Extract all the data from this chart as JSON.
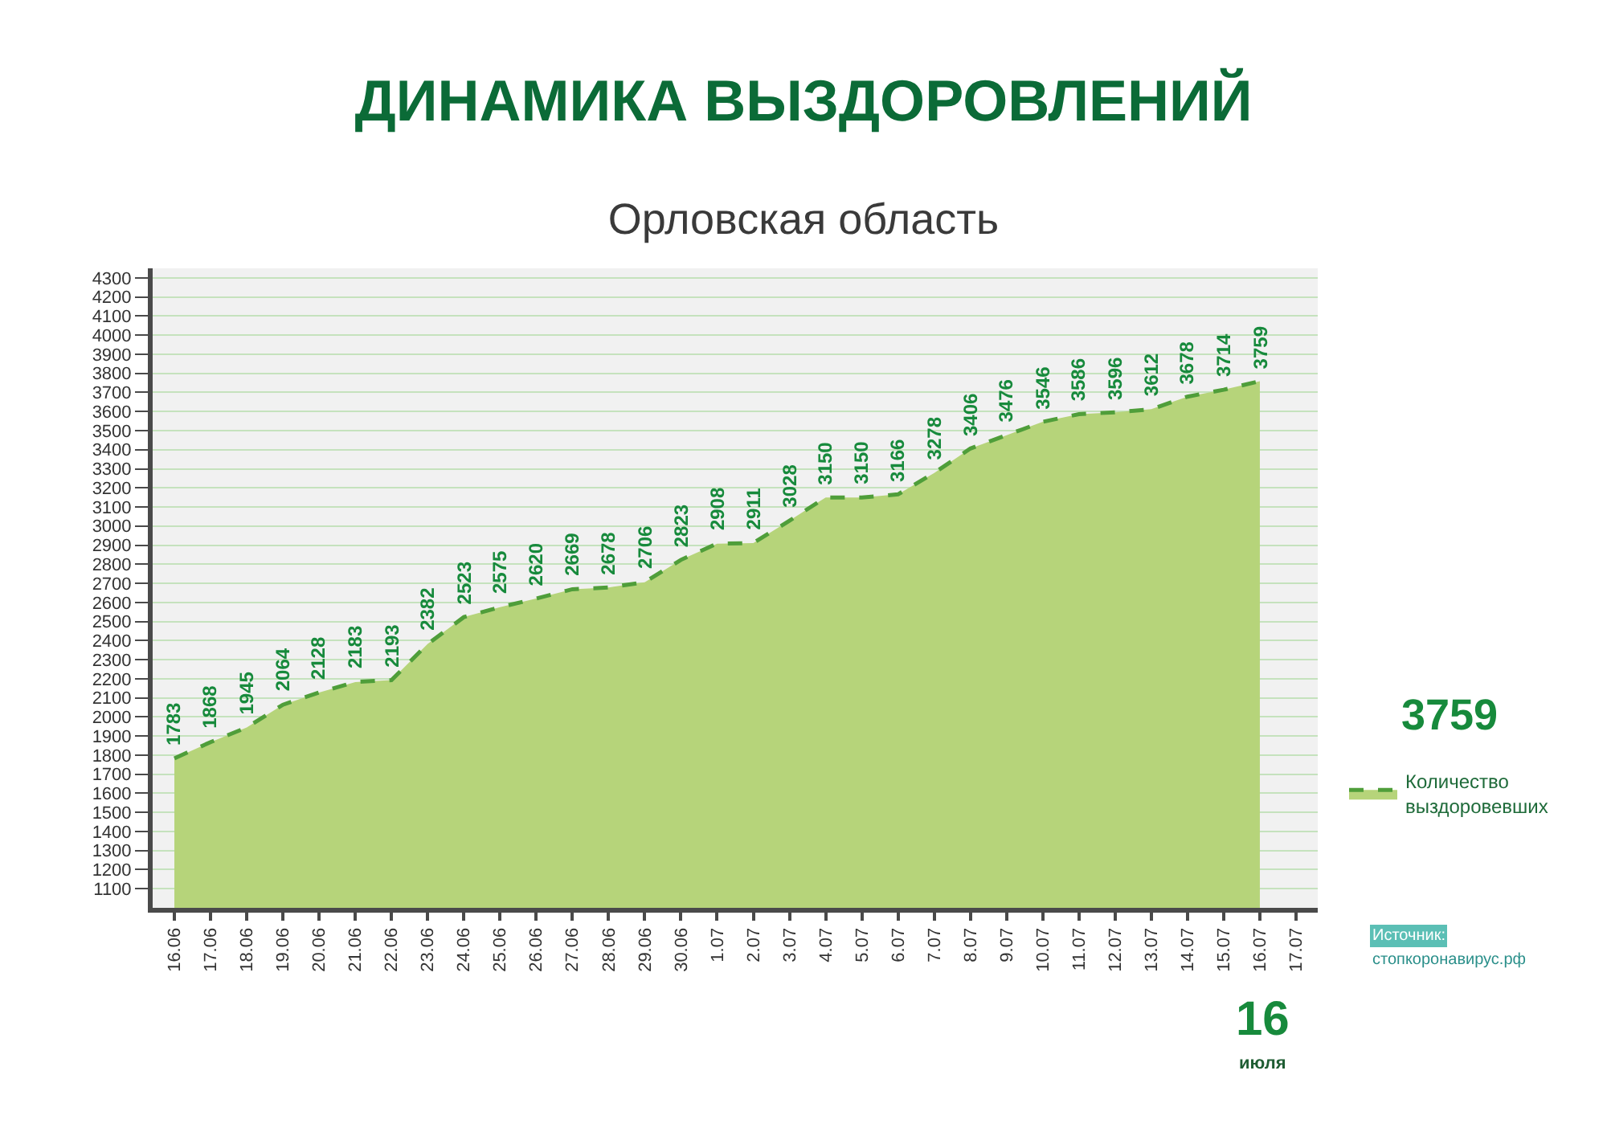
{
  "chart_data": {
    "type": "area",
    "title": "ДИНАМИКА ВЫЗДОРОВЛЕНИЙ",
    "subtitle": "Орловская область",
    "categories": [
      "16.06",
      "17.06",
      "18.06",
      "19.06",
      "20.06",
      "21.06",
      "22.06",
      "23.06",
      "24.06",
      "25.06",
      "26.06",
      "27.06",
      "28.06",
      "29.06",
      "30.06",
      "1.07",
      "2.07",
      "3.07",
      "4.07",
      "5.07",
      "6.07",
      "7.07",
      "8.07",
      "9.07",
      "10.07",
      "11.07",
      "12.07",
      "13.07",
      "14.07",
      "15.07",
      "16.07",
      "17.07"
    ],
    "series": [
      {
        "name": "Количество выздоровевших",
        "color": "#b6d47a",
        "values": [
          1783,
          1868,
          1945,
          2064,
          2128,
          2183,
          2193,
          2382,
          2523,
          2575,
          2620,
          2669,
          2678,
          2706,
          2823,
          2908,
          2911,
          3028,
          3150,
          3150,
          3166,
          3278,
          3406,
          3476,
          3546,
          3586,
          3596,
          3612,
          3678,
          3714,
          3759,
          null
        ]
      }
    ],
    "ylim": [
      1000,
      4350
    ],
    "yticks": [
      1100,
      1200,
      1300,
      1400,
      1500,
      1600,
      1700,
      1800,
      1900,
      2000,
      2100,
      2200,
      2300,
      2400,
      2500,
      2600,
      2700,
      2800,
      2900,
      3000,
      3100,
      3200,
      3300,
      3400,
      3500,
      3600,
      3700,
      3800,
      3900,
      4000,
      4100,
      4200,
      4300
    ],
    "grid": "y",
    "legend": "right",
    "marker": "none",
    "line_style": "dashed",
    "data_labels": true,
    "annotations": [
      "3759",
      "Источник:",
      "стопкоронавирус.рф",
      "16",
      "июля"
    ]
  }
}
